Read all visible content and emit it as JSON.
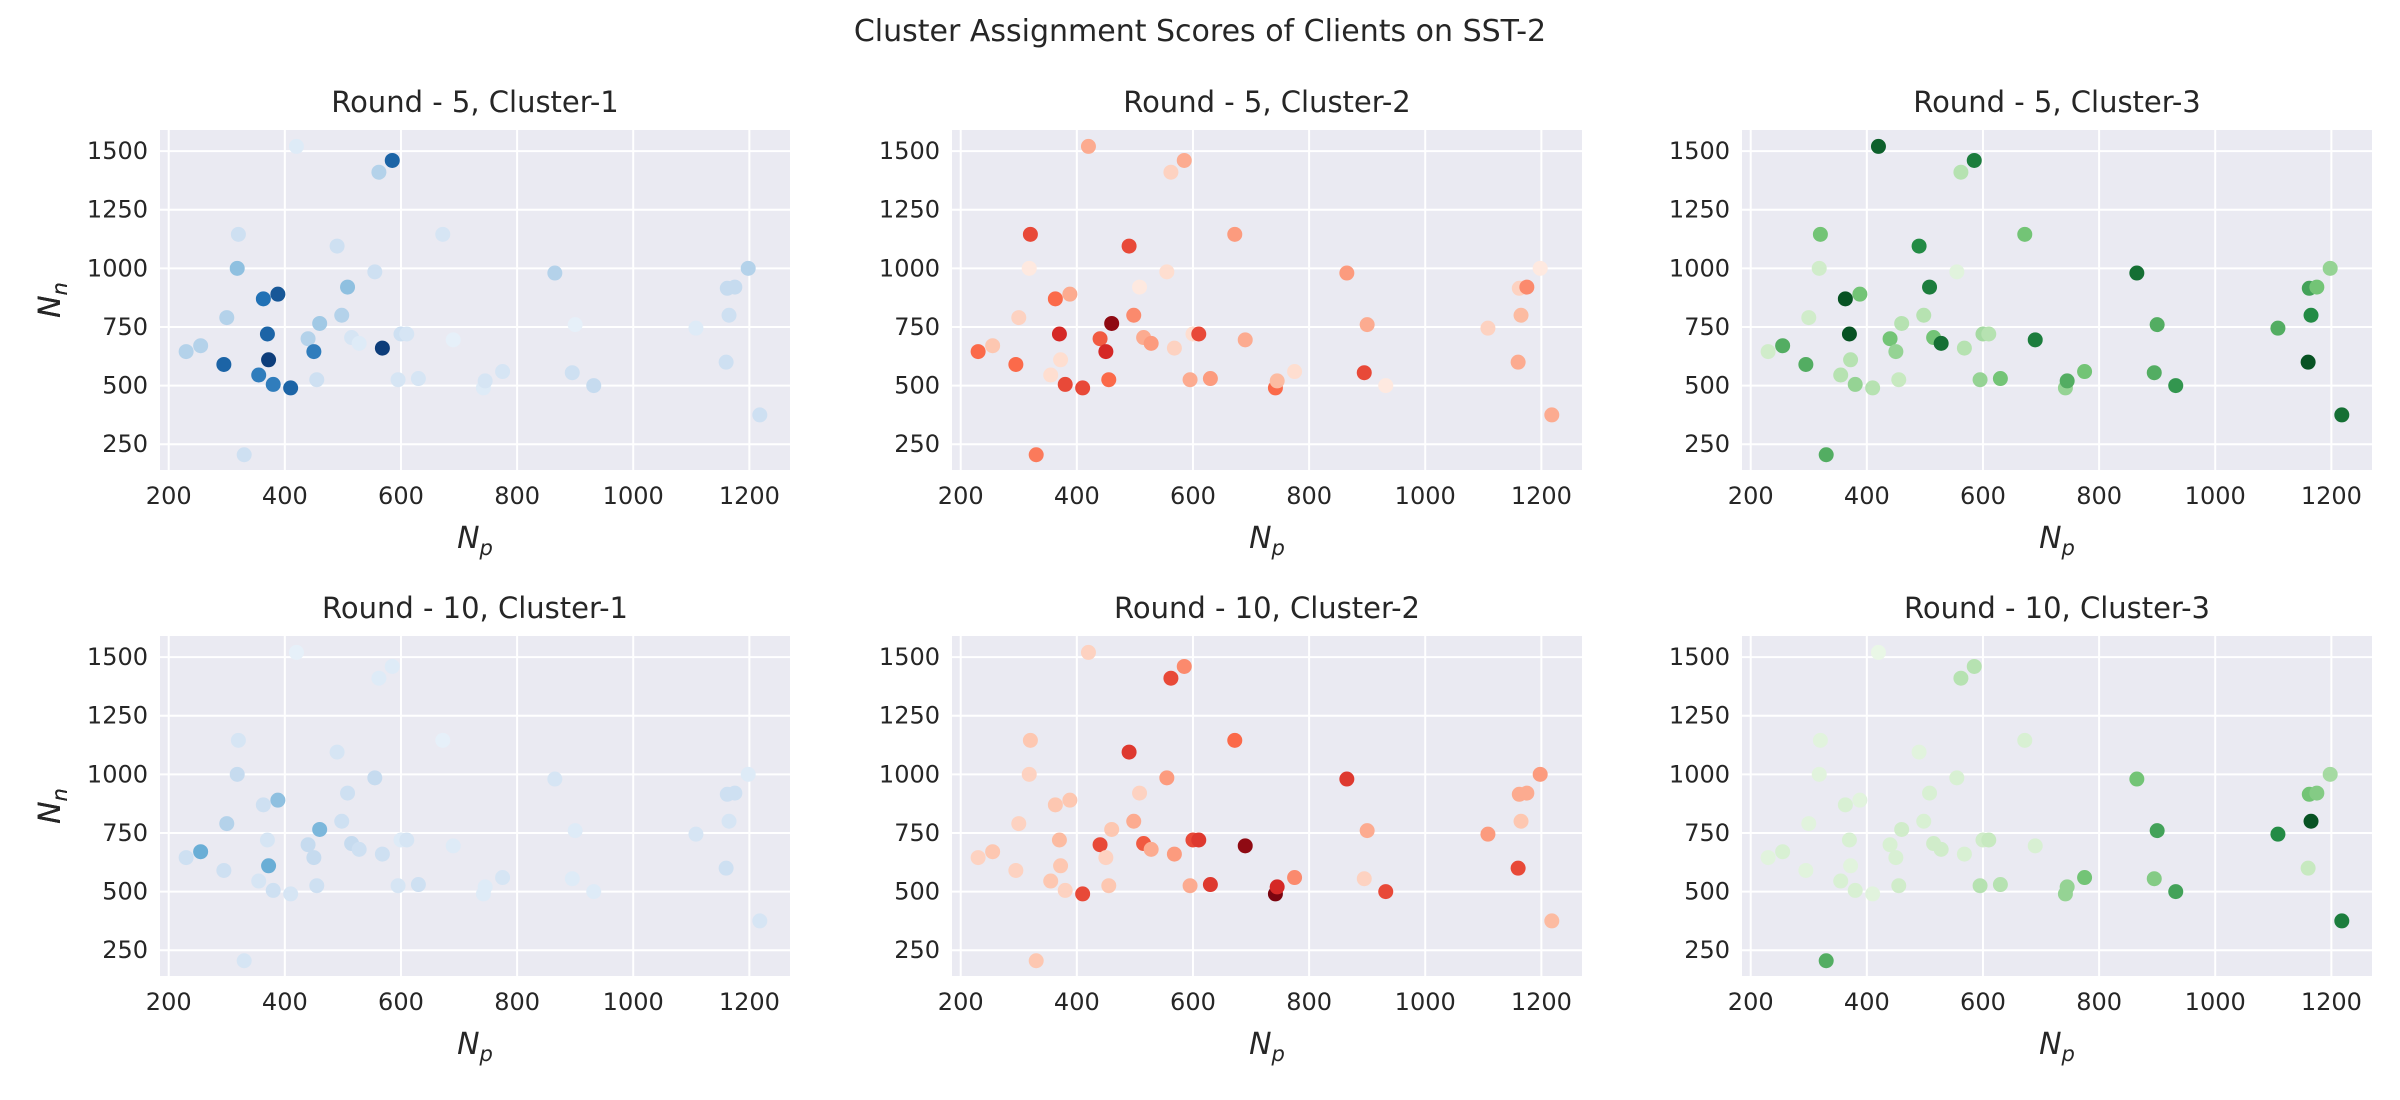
{
  "figure": {
    "title": "Cluster Assignment Scores of Clients on SST-2",
    "colormaps": {
      "Blues": [
        "#eef5fc",
        "#c6dbef",
        "#6aaed6",
        "#2171b5",
        "#08306b"
      ],
      "Reds": [
        "#fff5f0",
        "#fcbba1",
        "#fb6a4a",
        "#cb181d",
        "#67000d"
      ],
      "Greens": [
        "#f2faf0",
        "#c7e9c0",
        "#73c476",
        "#238b45",
        "#00441b"
      ]
    },
    "style": {
      "background": "#eaeaf2",
      "grid": "#ffffff",
      "text": "#262626"
    }
  },
  "clients": {
    "x": [
      230,
      255,
      295,
      300,
      318,
      320,
      330,
      355,
      363,
      370,
      372,
      380,
      388,
      410,
      420,
      440,
      450,
      455,
      460,
      490,
      498,
      508,
      515,
      528,
      555,
      562,
      568,
      585,
      595,
      600,
      610,
      630,
      672,
      690,
      742,
      745,
      775,
      865,
      895,
      900,
      932,
      1108,
      1160,
      1162,
      1165,
      1175,
      1198,
      1218
    ],
    "y": [
      645,
      670,
      590,
      790,
      1000,
      1145,
      205,
      545,
      870,
      720,
      610,
      505,
      890,
      490,
      1520,
      700,
      645,
      525,
      765,
      1095,
      800,
      920,
      705,
      680,
      985,
      1410,
      660,
      1460,
      525,
      720,
      720,
      530,
      1145,
      695,
      490,
      520,
      560,
      980,
      555,
      760,
      500,
      745,
      600,
      915,
      800,
      920,
      1000,
      375
    ]
  },
  "chart_data": [
    {
      "type": "scatter",
      "title": "Round - 5, Cluster-1",
      "xlabel": "N_p",
      "ylabel": "N_n",
      "xlim": [
        185,
        1270
      ],
      "ylim": [
        140,
        1590
      ],
      "xticks": [
        200,
        400,
        600,
        800,
        1000,
        1200
      ],
      "yticks": [
        250,
        500,
        750,
        1000,
        1250,
        1500
      ],
      "grid": true,
      "colormap": "Blues",
      "values": [
        0.3,
        0.3,
        0.8,
        0.3,
        0.4,
        0.2,
        0.2,
        0.7,
        0.75,
        0.8,
        0.95,
        0.7,
        0.85,
        0.8,
        0.1,
        0.3,
        0.7,
        0.2,
        0.35,
        0.2,
        0.3,
        0.4,
        0.15,
        0.1,
        0.2,
        0.3,
        0.95,
        0.8,
        0.15,
        0.2,
        0.15,
        0.15,
        0.15,
        0.05,
        0.1,
        0.15,
        0.15,
        0.3,
        0.2,
        0.05,
        0.25,
        0.1,
        0.2,
        0.25,
        0.2,
        0.25,
        0.3,
        0.2
      ]
    },
    {
      "type": "scatter",
      "title": "Round - 5, Cluster-2",
      "xlabel": "N_p",
      "ylabel": "N_n",
      "xlim": [
        185,
        1270
      ],
      "ylim": [
        140,
        1590
      ],
      "xticks": [
        200,
        400,
        600,
        800,
        1000,
        1200
      ],
      "yticks": [
        250,
        500,
        750,
        1000,
        1250,
        1500
      ],
      "grid": true,
      "colormap": "Reds",
      "values": [
        0.5,
        0.2,
        0.5,
        0.15,
        0.05,
        0.6,
        0.45,
        0.1,
        0.5,
        0.7,
        0.1,
        0.6,
        0.3,
        0.6,
        0.3,
        0.55,
        0.7,
        0.5,
        0.9,
        0.6,
        0.4,
        0.05,
        0.3,
        0.35,
        0.1,
        0.15,
        0.15,
        0.3,
        0.3,
        0.1,
        0.6,
        0.35,
        0.35,
        0.3,
        0.5,
        0.25,
        0.1,
        0.35,
        0.6,
        0.3,
        0.05,
        0.15,
        0.3,
        0.15,
        0.25,
        0.4,
        0.05,
        0.3
      ]
    },
    {
      "type": "scatter",
      "title": "Round - 5, Cluster-3",
      "xlabel": "N_p",
      "ylabel": "N_n",
      "xlim": [
        185,
        1270
      ],
      "ylim": [
        140,
        1590
      ],
      "xticks": [
        200,
        400,
        600,
        800,
        1000,
        1200
      ],
      "yticks": [
        250,
        500,
        750,
        1000,
        1250,
        1500
      ],
      "grid": true,
      "colormap": "Greens",
      "values": [
        0.2,
        0.6,
        0.6,
        0.2,
        0.2,
        0.5,
        0.6,
        0.3,
        0.95,
        0.95,
        0.3,
        0.4,
        0.5,
        0.3,
        0.9,
        0.5,
        0.4,
        0.25,
        0.3,
        0.75,
        0.3,
        0.8,
        0.5,
        0.85,
        0.1,
        0.3,
        0.3,
        0.8,
        0.4,
        0.35,
        0.3,
        0.5,
        0.5,
        0.8,
        0.4,
        0.6,
        0.5,
        0.85,
        0.6,
        0.6,
        0.7,
        0.6,
        0.95,
        0.65,
        0.75,
        0.5,
        0.4,
        0.85
      ]
    },
    {
      "type": "scatter",
      "title": "Round - 10, Cluster-1",
      "xlabel": "N_p",
      "ylabel": "N_n",
      "xlim": [
        185,
        1270
      ],
      "ylim": [
        140,
        1590
      ],
      "xticks": [
        200,
        400,
        600,
        800,
        1000,
        1200
      ],
      "yticks": [
        250,
        500,
        750,
        1000,
        1250,
        1500
      ],
      "grid": true,
      "colormap": "Blues",
      "values": [
        0.2,
        0.5,
        0.2,
        0.3,
        0.25,
        0.15,
        0.15,
        0.15,
        0.2,
        0.15,
        0.5,
        0.2,
        0.4,
        0.15,
        0.05,
        0.25,
        0.25,
        0.2,
        0.45,
        0.15,
        0.2,
        0.2,
        0.25,
        0.2,
        0.25,
        0.1,
        0.2,
        0.1,
        0.15,
        0.1,
        0.15,
        0.2,
        0.05,
        0.1,
        0.1,
        0.1,
        0.15,
        0.15,
        0.1,
        0.1,
        0.1,
        0.15,
        0.2,
        0.2,
        0.15,
        0.2,
        0.1,
        0.15
      ]
    },
    {
      "type": "scatter",
      "title": "Round - 10, Cluster-2",
      "xlabel": "N_p",
      "ylabel": "N_n",
      "xlim": [
        185,
        1270
      ],
      "ylim": [
        140,
        1590
      ],
      "xticks": [
        200,
        400,
        600,
        800,
        1000,
        1200
      ],
      "yticks": [
        250,
        500,
        750,
        1000,
        1250,
        1500
      ],
      "grid": true,
      "colormap": "Reds",
      "values": [
        0.15,
        0.2,
        0.15,
        0.15,
        0.15,
        0.2,
        0.2,
        0.2,
        0.2,
        0.25,
        0.2,
        0.15,
        0.2,
        0.6,
        0.15,
        0.6,
        0.15,
        0.2,
        0.2,
        0.65,
        0.3,
        0.15,
        0.55,
        0.3,
        0.35,
        0.6,
        0.35,
        0.4,
        0.3,
        0.6,
        0.65,
        0.65,
        0.5,
        0.9,
        0.95,
        0.7,
        0.4,
        0.65,
        0.15,
        0.3,
        0.6,
        0.35,
        0.6,
        0.3,
        0.2,
        0.3,
        0.35,
        0.25
      ]
    },
    {
      "type": "scatter",
      "title": "Round - 10, Cluster-3",
      "xlabel": "N_p",
      "ylabel": "N_n",
      "xlim": [
        185,
        1270
      ],
      "ylim": [
        140,
        1590
      ],
      "xticks": [
        200,
        400,
        600,
        800,
        1000,
        1200
      ],
      "yticks": [
        250,
        500,
        750,
        1000,
        1250,
        1500
      ],
      "grid": true,
      "colormap": "Greens",
      "values": [
        0.1,
        0.15,
        0.1,
        0.1,
        0.1,
        0.1,
        0.6,
        0.15,
        0.15,
        0.15,
        0.1,
        0.15,
        0.1,
        0.1,
        0.05,
        0.15,
        0.15,
        0.2,
        0.2,
        0.1,
        0.15,
        0.15,
        0.2,
        0.2,
        0.15,
        0.3,
        0.15,
        0.3,
        0.3,
        0.2,
        0.25,
        0.3,
        0.15,
        0.15,
        0.4,
        0.4,
        0.5,
        0.5,
        0.45,
        0.65,
        0.65,
        0.75,
        0.25,
        0.5,
        0.95,
        0.45,
        0.35,
        0.8
      ]
    }
  ]
}
